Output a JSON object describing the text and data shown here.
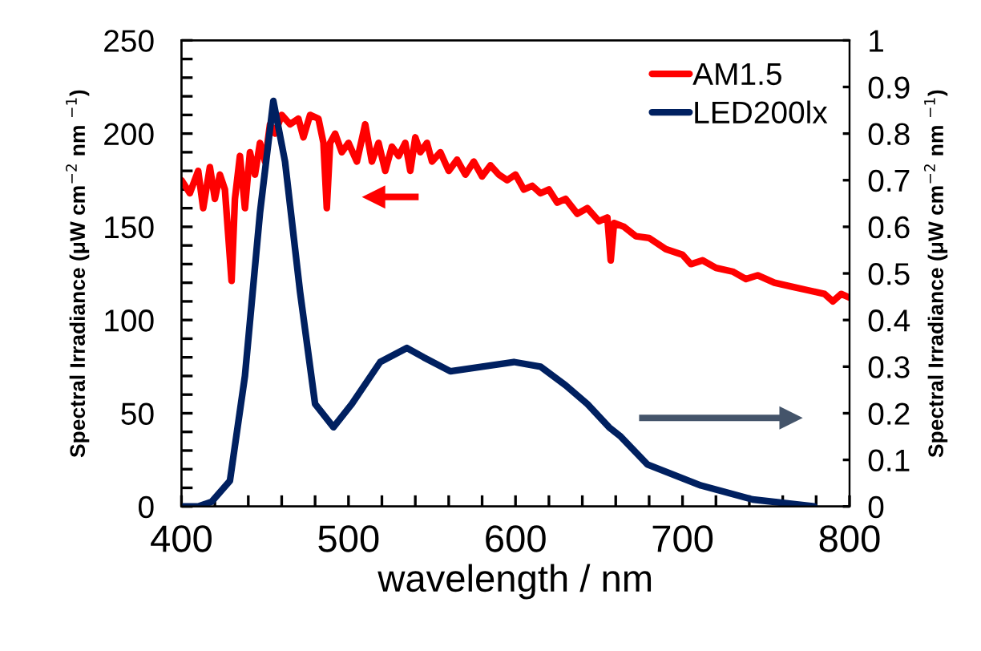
{
  "chart_data": {
    "type": "line",
    "xlabel": "wavelength / nm",
    "ylabel": "Spectral Irradiance (μW cm$^{−2}$ nm $^{−1}$)",
    "y2label": "Spectral Irradiance (μW cm$^{−2}$ nm $^{−1}$)",
    "xlim": [
      400,
      800
    ],
    "xticks": [
      400,
      {
        "value": 420,
        "label": null
      },
      {
        "value": 440,
        "label": null
      },
      {
        "value": 460,
        "label": null
      },
      {
        "value": 480,
        "label": null
      },
      500,
      {
        "value": 520,
        "label": null
      },
      {
        "value": 540,
        "label": null
      },
      {
        "value": 560,
        "label": null
      },
      {
        "value": 580,
        "label": null
      },
      600,
      {
        "value": 620,
        "label": null
      },
      {
        "value": 640,
        "label": null
      },
      {
        "value": 660,
        "label": null
      },
      {
        "value": 680,
        "label": null
      },
      700,
      {
        "value": 720,
        "label": null
      },
      {
        "value": 740,
        "label": null
      },
      {
        "value": 760,
        "label": null
      },
      {
        "value": 780,
        "label": null
      },
      800
    ],
    "ylim": [
      0,
      250
    ],
    "yticks": [
      0,
      {
        "value": 10,
        "label": null
      },
      {
        "value": 20,
        "label": null
      },
      {
        "value": 30,
        "label": null
      },
      {
        "value": 40,
        "label": null
      },
      50,
      {
        "value": 60,
        "label": null
      },
      {
        "value": 70,
        "label": null
      },
      {
        "value": 80,
        "label": null
      },
      {
        "value": 90,
        "label": null
      },
      100,
      {
        "value": 110,
        "label": null
      },
      {
        "value": 120,
        "label": null
      },
      {
        "value": 130,
        "label": null
      },
      {
        "value": 140,
        "label": null
      },
      150,
      {
        "value": 160,
        "label": null
      },
      {
        "value": 170,
        "label": null
      },
      {
        "value": 180,
        "label": null
      },
      {
        "value": 190,
        "label": null
      },
      200,
      {
        "value": 210,
        "label": null
      },
      {
        "value": 220,
        "label": null
      },
      {
        "value": 230,
        "label": null
      },
      {
        "value": 240,
        "label": null
      },
      250
    ],
    "y2lim": [
      0,
      1
    ],
    "y2ticks": [
      0,
      0.1,
      0.2,
      0.3,
      0.4,
      0.5,
      0.6,
      0.7,
      0.8,
      0.9,
      1
    ],
    "legend": "top right",
    "grid": false,
    "marker": "none",
    "line_style": "solid",
    "series": [
      {
        "name": "AM1.5",
        "color": "#ff0000",
        "x": [
          400,
          405,
          410,
          413,
          417,
          420,
          423,
          426,
          430,
          432,
          435,
          438,
          441,
          444,
          447,
          450,
          453,
          456,
          460,
          465,
          470,
          473,
          477,
          482,
          485,
          487,
          489,
          492,
          496,
          500,
          505,
          510,
          514,
          518,
          522,
          526,
          530,
          534,
          537,
          540,
          543,
          547,
          550,
          555,
          560,
          565,
          570,
          575,
          580,
          585,
          590,
          595,
          600,
          605,
          610,
          615,
          620,
          625,
          630,
          637,
          643,
          650,
          655,
          657,
          659,
          665,
          672,
          680,
          690,
          700,
          705,
          712,
          720,
          730,
          738,
          745,
          755,
          765,
          775,
          785,
          790,
          795,
          800
        ],
        "values": [
          175,
          168,
          180,
          160,
          182,
          165,
          178,
          170,
          121,
          165,
          188,
          160,
          190,
          178,
          195,
          185,
          205,
          200,
          210,
          205,
          208,
          198,
          210,
          208,
          195,
          160,
          195,
          200,
          190,
          195,
          185,
          205,
          185,
          195,
          180,
          193,
          188,
          195,
          180,
          198,
          190,
          195,
          185,
          190,
          180,
          186,
          178,
          185,
          177,
          183,
          178,
          175,
          178,
          170,
          172,
          168,
          170,
          163,
          165,
          157,
          160,
          153,
          155,
          132,
          152,
          150,
          145,
          144,
          138,
          135,
          130,
          132,
          128,
          126,
          122,
          124,
          120,
          118,
          116,
          114,
          110,
          114,
          112
        ]
      },
      {
        "name": "LED200lx",
        "color": "#002060",
        "axis": "y2",
        "x": [
          400,
          410,
          418,
          429,
          438,
          447,
          455,
          462,
          471,
          480,
          491,
          502,
          519,
          535,
          545,
          561,
          580,
          599,
          615,
          630,
          643,
          656,
          663,
          679,
          711,
          742,
          779
        ],
        "values": [
          0,
          0,
          0.01,
          0.055,
          0.28,
          0.63,
          0.87,
          0.74,
          0.46,
          0.22,
          0.17,
          0.22,
          0.31,
          0.34,
          0.32,
          0.29,
          0.3,
          0.31,
          0.3,
          0.26,
          0.22,
          0.17,
          0.15,
          0.09,
          0.045,
          0.015,
          0
        ]
      }
    ]
  }
}
